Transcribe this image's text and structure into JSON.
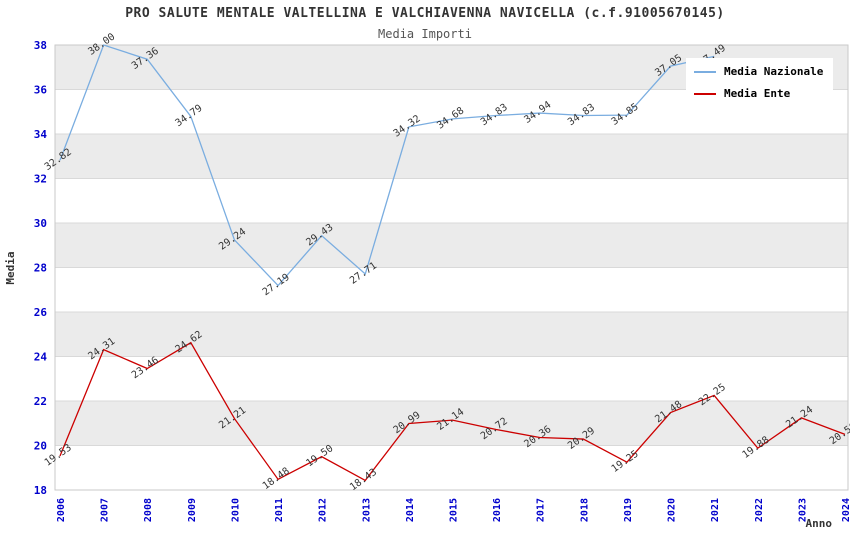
{
  "title": "PRO SALUTE MENTALE VALTELLINA E VALCHIAVENNA NAVICELLA (c.f.91005670145)",
  "subtitle": "Media Importi",
  "legend": [
    {
      "label": "Media Nazionale",
      "marker_css": "border-top-color:#7aade0;"
    },
    {
      "label": "Media Ente",
      "marker_css": "border-top-color:#cc0000;"
    }
  ],
  "chart_data": {
    "type": "line",
    "x": [
      2006,
      2007,
      2008,
      2009,
      2010,
      2011,
      2012,
      2013,
      2014,
      2015,
      2016,
      2017,
      2018,
      2019,
      2020,
      2021,
      2022,
      2023,
      2024
    ],
    "series": [
      {
        "name": "Media Nazionale",
        "color": "#7aade0",
        "values": [
          32.82,
          38.0,
          37.36,
          34.79,
          29.24,
          27.19,
          29.43,
          27.71,
          34.32,
          34.68,
          34.83,
          34.94,
          34.83,
          34.85,
          37.05,
          37.49,
          null,
          null,
          null
        ]
      },
      {
        "name": "Media Ente",
        "color": "#cc0000",
        "values": [
          19.53,
          24.31,
          23.46,
          24.62,
          21.21,
          18.48,
          19.5,
          18.43,
          20.99,
          21.14,
          20.72,
          20.36,
          20.29,
          19.25,
          21.48,
          22.25,
          19.88,
          21.24,
          20.5
        ]
      }
    ],
    "title": "PRO SALUTE MENTALE VALTELLINA E VALCHIAVENNA NAVICELLA (c.f.91005670145)",
    "subtitle": "Media Importi",
    "xlabel": "Anno",
    "ylabel": "Media",
    "ylim": [
      18,
      38
    ],
    "ytick_step": 2,
    "yticks": [
      18,
      20,
      22,
      24,
      26,
      28,
      30,
      32,
      34,
      36,
      38
    ],
    "grid": "horizontal gridlines with alternating shaded bands",
    "band_color": "#ebebeb",
    "gridline_color": "#d9d9d9",
    "tick_color": "#0000cc",
    "label_color": "#333333",
    "legend_position": "top-right"
  }
}
